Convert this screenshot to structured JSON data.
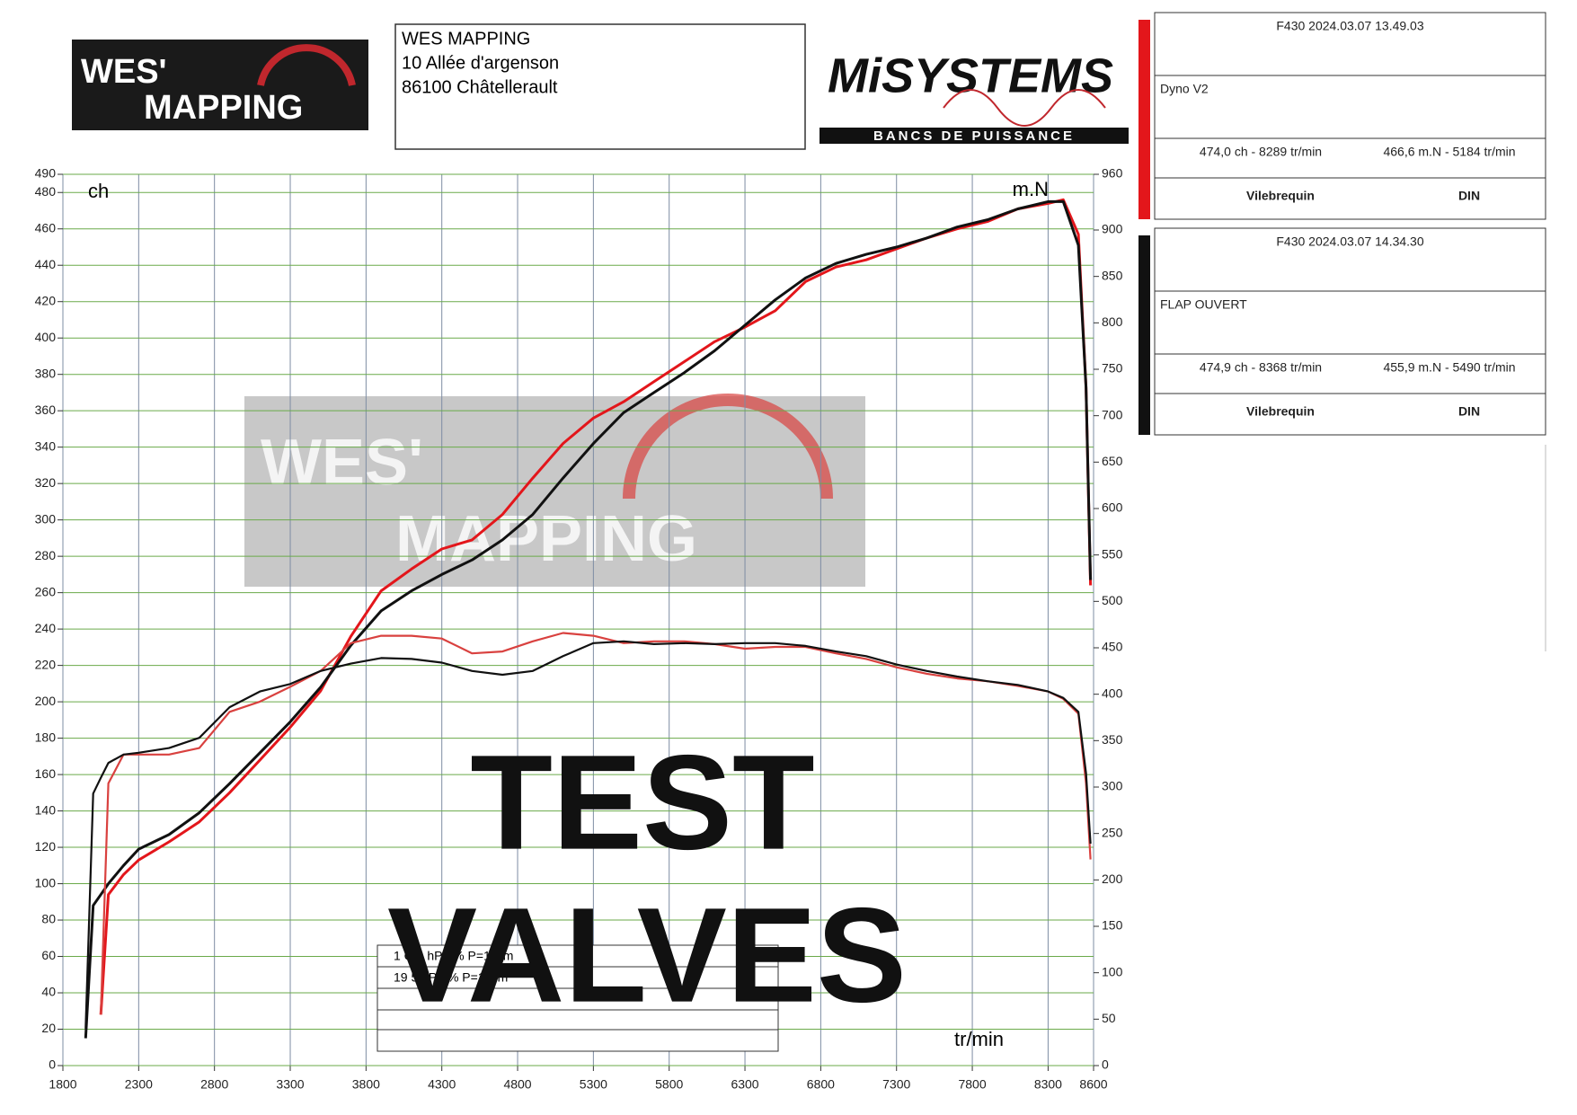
{
  "header": {
    "logo": [
      "WES'",
      "MAPPING"
    ],
    "address": [
      "WES MAPPING",
      "10 Allée d'argenson",
      "86100 Châtellerault"
    ],
    "brand": "MiSYSTEMS",
    "brand_tagline": "BANCS DE PUISSANCE"
  },
  "panels": [
    {
      "header": "F430   2024.03.07 13.49.03",
      "name": "Dyno V2",
      "power": "474,0 ch - 8289 tr/min",
      "torque": "466,6 m.N - 5184 tr/min",
      "mode": "Vilebrequin",
      "norm": "DIN",
      "color": "#e3161b"
    },
    {
      "header": "F430   2024.03.07 14.34.30",
      "name": "FLAP OUVERT",
      "power": "474,9 ch - 8368 tr/min",
      "torque": "455,9 m.N - 5490 tr/min",
      "mode": "Vilebrequin",
      "norm": "DIN",
      "color": "#111111"
    }
  ],
  "overlay": [
    "TEST",
    "VALVES"
  ],
  "conditions": [
    "1 C  9  hPa   %   P=1  Nm",
    "19    5 hPa  %   P=1  Nm"
  ],
  "chart_data": {
    "type": "line",
    "ylabel": "ch",
    "y2label": "m.N",
    "xlabel": "tr/min",
    "x": [
      1950,
      2000,
      2050,
      2100,
      2200,
      2300,
      2500,
      2700,
      2900,
      3100,
      3300,
      3500,
      3700,
      3900,
      4100,
      4300,
      4500,
      4700,
      4900,
      5100,
      5300,
      5500,
      5700,
      5900,
      6100,
      6300,
      6500,
      6700,
      6900,
      7100,
      7300,
      7500,
      7700,
      7900,
      8100,
      8300,
      8400,
      8500,
      8550,
      8580
    ],
    "series": [
      {
        "color": "#e3161b",
        "values": [
          null,
          null,
          28,
          94,
          105,
          113,
          123,
          134,
          150,
          168,
          186,
          206,
          236,
          261,
          273,
          284,
          289,
          303,
          323,
          342,
          356,
          365,
          376,
          387,
          398,
          406,
          415,
          431,
          439,
          443,
          449,
          455,
          460,
          464,
          471,
          474,
          476,
          457,
          373,
          264
        ]
      },
      {
        "color": "#111111",
        "values": [
          15,
          88,
          94,
          100,
          110,
          119,
          127,
          139,
          155,
          172,
          189,
          208,
          231,
          250,
          261,
          270,
          278,
          289,
          303,
          323,
          342,
          359,
          370,
          381,
          393,
          407,
          421,
          433,
          441,
          446,
          450,
          455,
          461,
          465,
          471,
          475,
          475,
          451,
          373,
          267
        ]
      },
      {
        "color": "#d9413f",
        "axis": "y2",
        "values": [
          null,
          null,
          55,
          304,
          335,
          335,
          335,
          342,
          381,
          392,
          408,
          425,
          455,
          463,
          463,
          460,
          444,
          446,
          457,
          466,
          463,
          455,
          457,
          457,
          454,
          449,
          451,
          451,
          444,
          438,
          429,
          422,
          417,
          414,
          409,
          403,
          395,
          379,
          304,
          222
        ]
      },
      {
        "color": "#111111",
        "axis": "y2",
        "values": [
          40,
          293,
          310,
          326,
          335,
          337,
          342,
          353,
          386,
          403,
          411,
          425,
          433,
          439,
          438,
          434,
          425,
          421,
          425,
          441,
          455,
          457,
          454,
          455,
          454,
          455,
          455,
          452,
          446,
          441,
          432,
          425,
          419,
          414,
          410,
          403,
          396,
          381,
          315,
          239
        ]
      }
    ],
    "xlim": [
      1800,
      8600
    ],
    "xticks": [
      1800,
      2300,
      2800,
      3300,
      3800,
      4300,
      4800,
      5300,
      5800,
      6300,
      6800,
      7300,
      7800,
      8300,
      8600
    ],
    "ylim": [
      0,
      490
    ],
    "yticks": [
      0,
      20,
      40,
      60,
      80,
      100,
      120,
      140,
      160,
      180,
      200,
      220,
      240,
      260,
      280,
      300,
      320,
      340,
      360,
      380,
      400,
      420,
      440,
      460,
      480,
      490
    ],
    "y2lim": [
      0,
      960
    ],
    "y2ticks": [
      0,
      50,
      100,
      150,
      200,
      250,
      300,
      350,
      400,
      450,
      500,
      550,
      600,
      650,
      700,
      750,
      800,
      850,
      900,
      960
    ],
    "grid": true,
    "xgrid_color": "#7d8ca3",
    "ygrid_color": "#6aaa4a"
  }
}
